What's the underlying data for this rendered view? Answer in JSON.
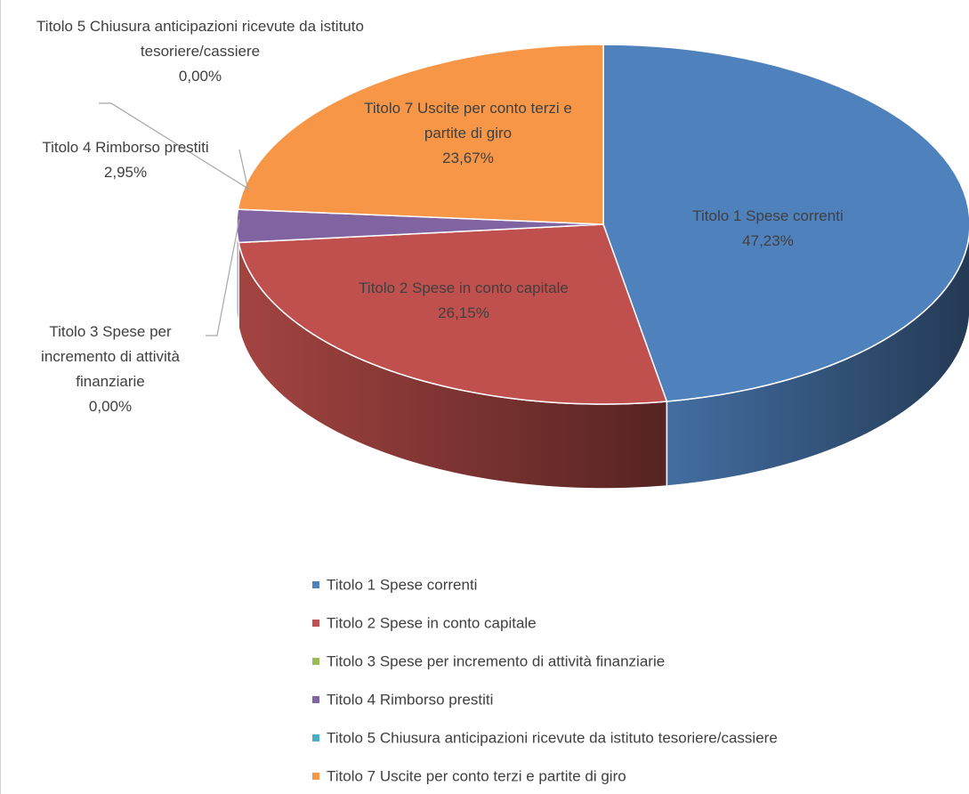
{
  "chart_data": {
    "type": "pie",
    "categories": [
      "Titolo 1 Spese correnti",
      "Titolo 2 Spese in conto capitale",
      "Titolo 3 Spese per incremento di attività finanziarie",
      "Titolo 4 Rimborso prestiti",
      "Titolo 5 Chiusura anticipazioni ricevute da istituto tesoriere/cassiere",
      "Titolo 7 Uscite per conto terzi e partite di giro"
    ],
    "values": [
      47.23,
      26.15,
      0,
      2.95,
      0,
      23.67
    ],
    "value_labels": [
      "47,23%",
      "26,15%",
      "0,00%",
      "2,95%",
      "0,00%",
      "23,67%"
    ],
    "colors": [
      "#4f81bd",
      "#c0504d",
      "#9bbb59",
      "#8064a2",
      "#4bacc6",
      "#f79646"
    ],
    "legend": "bottom"
  }
}
